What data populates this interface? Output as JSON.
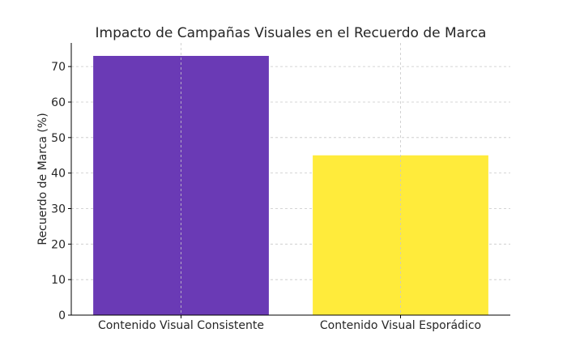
{
  "chart_data": {
    "type": "bar",
    "title": "Impacto de Campañas Visuales en el Recuerdo de Marca",
    "xlabel": "",
    "ylabel": "Recuerdo de Marca (%)",
    "categories": [
      "Contenido Visual Consistente",
      "Contenido Visual Esporádico"
    ],
    "values": [
      73,
      45
    ],
    "colors": [
      "#6a3ab5",
      "#ffeb3b"
    ],
    "ylim": [
      0,
      76.65
    ],
    "yticks": [
      0,
      10,
      20,
      30,
      40,
      50,
      60,
      70
    ],
    "grid": true
  }
}
